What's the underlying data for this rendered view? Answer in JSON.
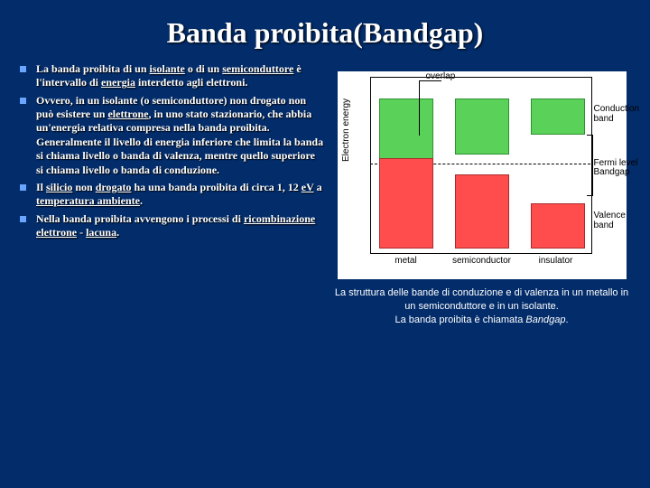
{
  "title": "Banda proibita(Bandgap)",
  "bullets": [
    {
      "html": "La banda proibita di un <span class='u'>isolante</span> o di un <span class='u'>semiconduttore</span> è l'intervallo di <span class='u'>energia</span> interdetto agli elettroni."
    },
    {
      "html": "Ovvero, in un isolante (o semiconduttore) non drogato non può esistere un <span class='u'>elettrone</span>, in uno stato stazionario, che abbia un'energia relativa compresa nella banda proibita. Generalmente il livello di energia inferiore che limita la banda si chiama livello o banda di valenza, mentre quello superiore si chiama livello o banda di conduzione."
    },
    {
      "html": "Il <span class='u'>silicio</span> non <span class='u'>drogato</span> ha una banda proibita di circa 1, 12 <span class='u'>eV</span> a <span class='u'>temperatura ambiente</span>."
    },
    {
      "html": "Nella banda proibita avvengono i processi di <span class='u'>ricombinazione elettrone</span> - <span class='u'>lacuna</span>."
    }
  ],
  "diagram": {
    "y_axis": "Electron energy",
    "labels": {
      "overlap": "overlap",
      "conduction": "Conduction band",
      "fermi": "Fermi level",
      "bandgap": "Bandgap",
      "valence": "Valence band"
    },
    "x_ticks": [
      "metal",
      "semiconductor",
      "insulator"
    ],
    "colors": {
      "conduction": "#5ad25a",
      "valence": "#ff4d4d",
      "bg": "#ffffff"
    }
  },
  "caption_line1": "La struttura delle bande di conduzione e di valenza in un metallo in un semiconduttore e in un isolante.",
  "caption_line2_pre": "La banda proibita è chiamata ",
  "caption_line2_ital": "Bandgap",
  "caption_line2_post": "."
}
